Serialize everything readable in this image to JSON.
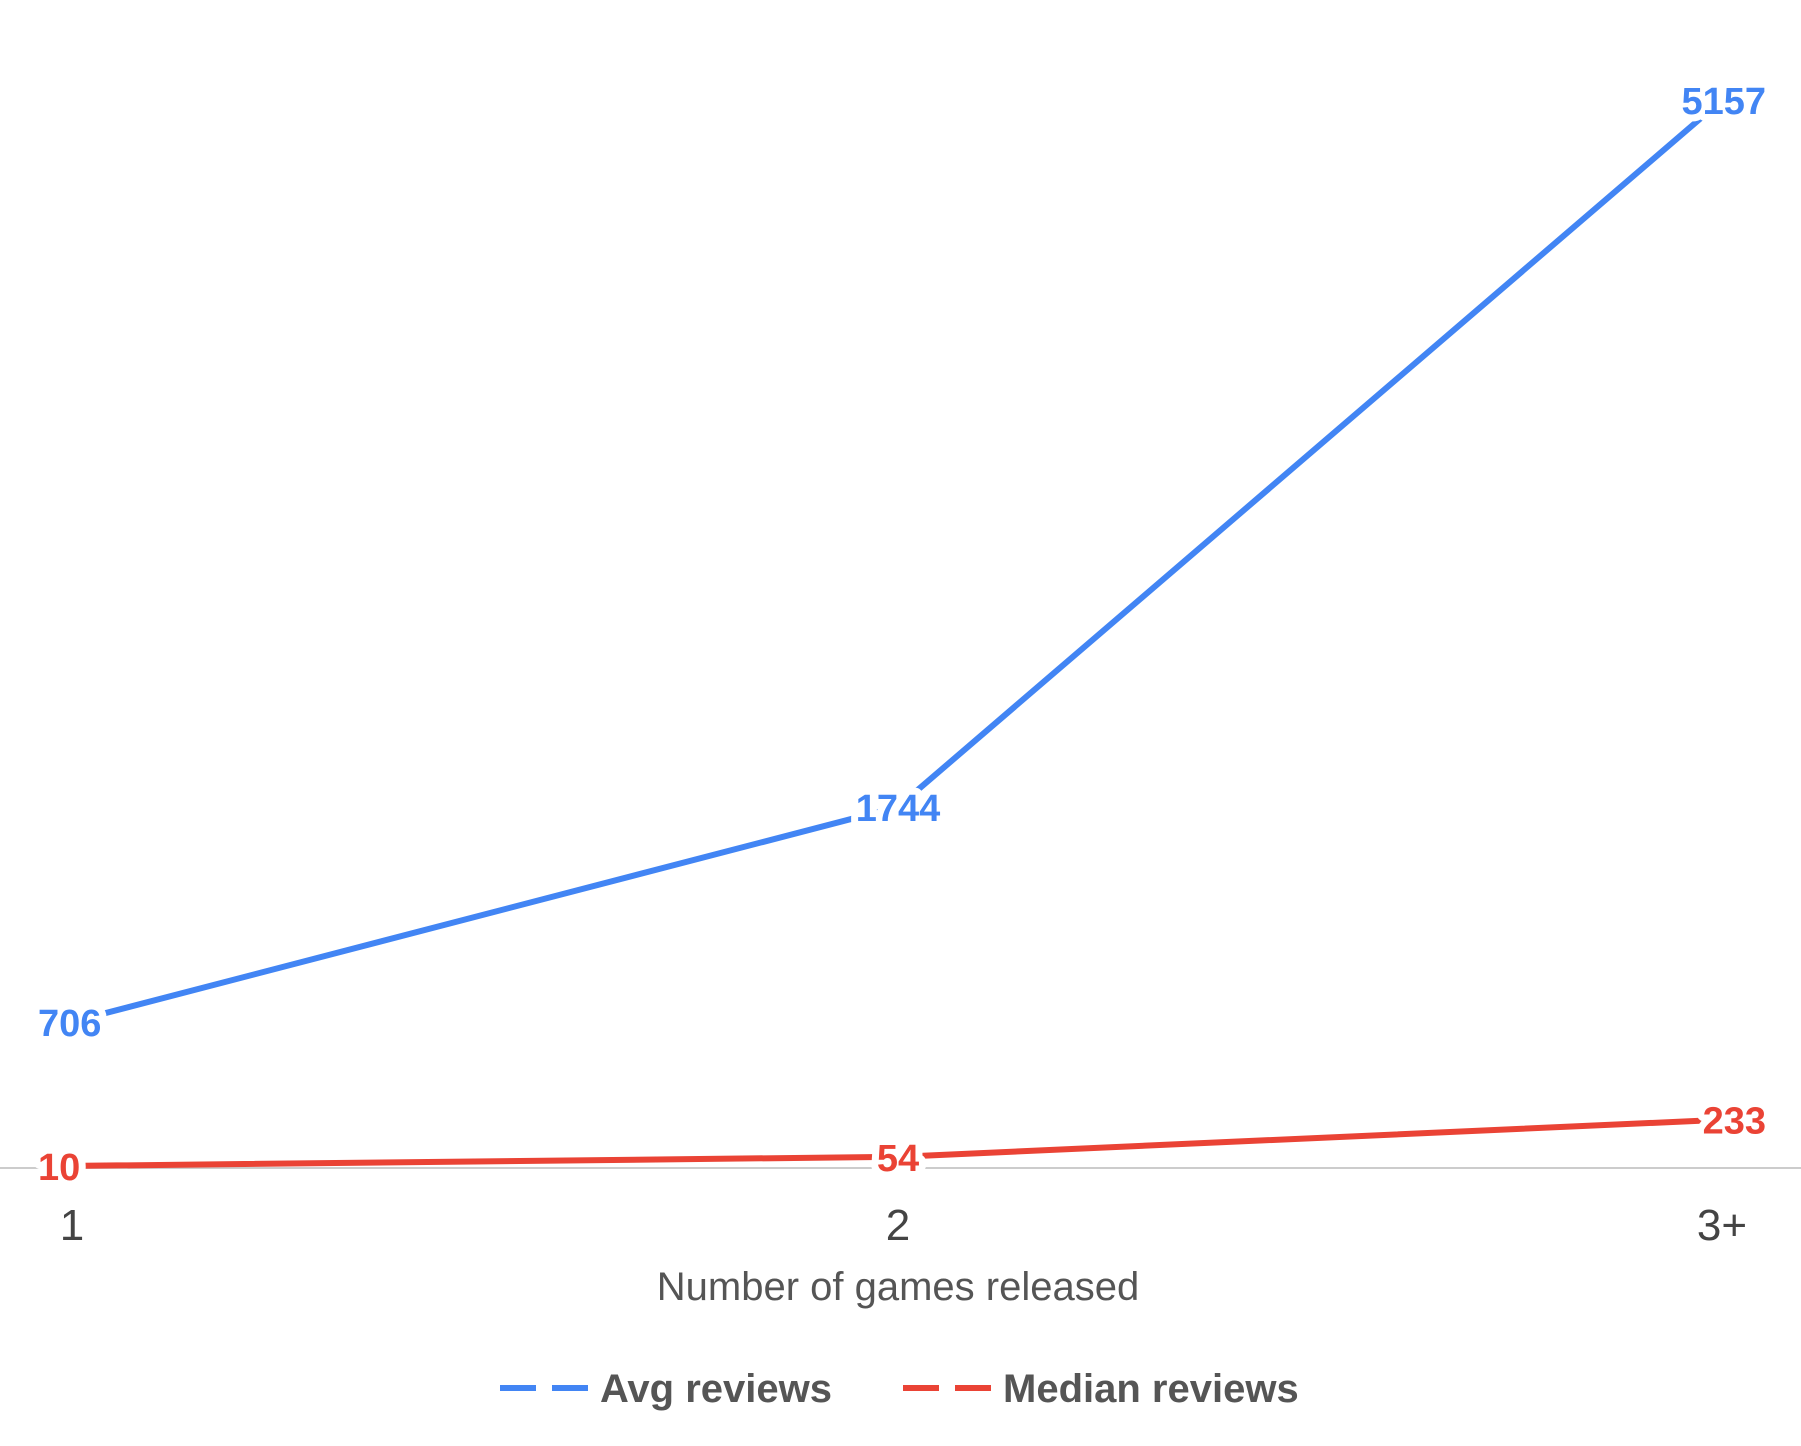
{
  "chart_data": {
    "type": "line",
    "categories": [
      "1",
      "2",
      "3+"
    ],
    "xlabel": "Number of games released",
    "ylabel": "",
    "ylim": [
      0,
      5157
    ],
    "grid": false,
    "legend_position": "bottom",
    "series": [
      {
        "name": "Avg reviews",
        "values": [
          706,
          1744,
          5157
        ],
        "color": "#4285F4"
      },
      {
        "name": "Median reviews",
        "values": [
          10,
          54,
          233
        ],
        "color": "#EA4335"
      }
    ]
  },
  "colors": {
    "baseline": "#cccccc",
    "text": "#444444"
  }
}
